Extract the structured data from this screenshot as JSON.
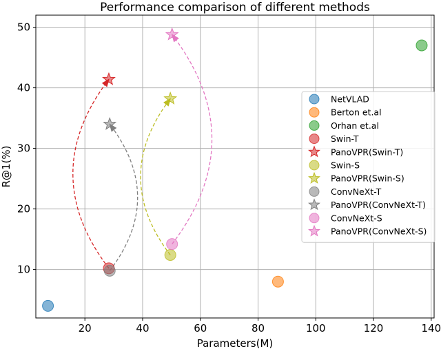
{
  "chart_data": {
    "type": "scatter",
    "title": "Performance comparison of different methods",
    "xlabel": "Parameters(M)",
    "ylabel": "R@1(%)",
    "xlim": [
      3,
      141
    ],
    "ylim": [
      2,
      52
    ],
    "xticks": [
      20,
      40,
      60,
      80,
      100,
      120,
      140
    ],
    "yticks": [
      10,
      20,
      30,
      40,
      50
    ],
    "grid": true,
    "legend_position": "right",
    "series": [
      {
        "name": "NetVLAD",
        "marker": "circle",
        "color": "#1f77b4",
        "x": 7.2,
        "y": 4.0
      },
      {
        "name": "Berton et.al",
        "marker": "circle",
        "color": "#ff7f0e",
        "x": 86.9,
        "y": 8.0
      },
      {
        "name": "Orhan et.al",
        "marker": "circle",
        "color": "#2ca02c",
        "x": 136.7,
        "y": 47.0
      },
      {
        "name": "Swin-T",
        "marker": "circle",
        "color": "#d62728",
        "x": 28.3,
        "y": 10.2
      },
      {
        "name": "PanoVPR(Swin-T)",
        "marker": "star",
        "color": "#d62728",
        "x": 28.3,
        "y": 41.4
      },
      {
        "name": "Swin-S",
        "marker": "circle",
        "color": "#bcbd22",
        "x": 49.6,
        "y": 12.4
      },
      {
        "name": "PanoVPR(Swin-S)",
        "marker": "star",
        "color": "#bcbd22",
        "x": 49.6,
        "y": 38.2
      },
      {
        "name": "ConvNeXt-T",
        "marker": "circle",
        "color": "#7f7f7f",
        "x": 28.6,
        "y": 9.8
      },
      {
        "name": "PanoVPR(ConvNeXt-T)",
        "marker": "star",
        "color": "#7f7f7f",
        "x": 28.6,
        "y": 34.0
      },
      {
        "name": "ConvNeXt-S",
        "marker": "circle",
        "color": "#e377c2",
        "x": 50.2,
        "y": 14.2
      },
      {
        "name": "PanoVPR(ConvNeXt-S)",
        "marker": "star",
        "color": "#e377c2",
        "x": 50.2,
        "y": 48.8
      }
    ],
    "arrows": [
      {
        "from": "Swin-T",
        "to": "PanoVPR(Swin-T)",
        "color": "#d62728",
        "bend": -1
      },
      {
        "from": "ConvNeXt-T",
        "to": "PanoVPR(ConvNeXt-T)",
        "color": "#7f7f7f",
        "bend": 1
      },
      {
        "from": "Swin-S",
        "to": "PanoVPR(Swin-S)",
        "color": "#bcbd22",
        "bend": -1
      },
      {
        "from": "ConvNeXt-S",
        "to": "PanoVPR(ConvNeXt-S)",
        "color": "#e377c2",
        "bend": 1
      }
    ]
  }
}
